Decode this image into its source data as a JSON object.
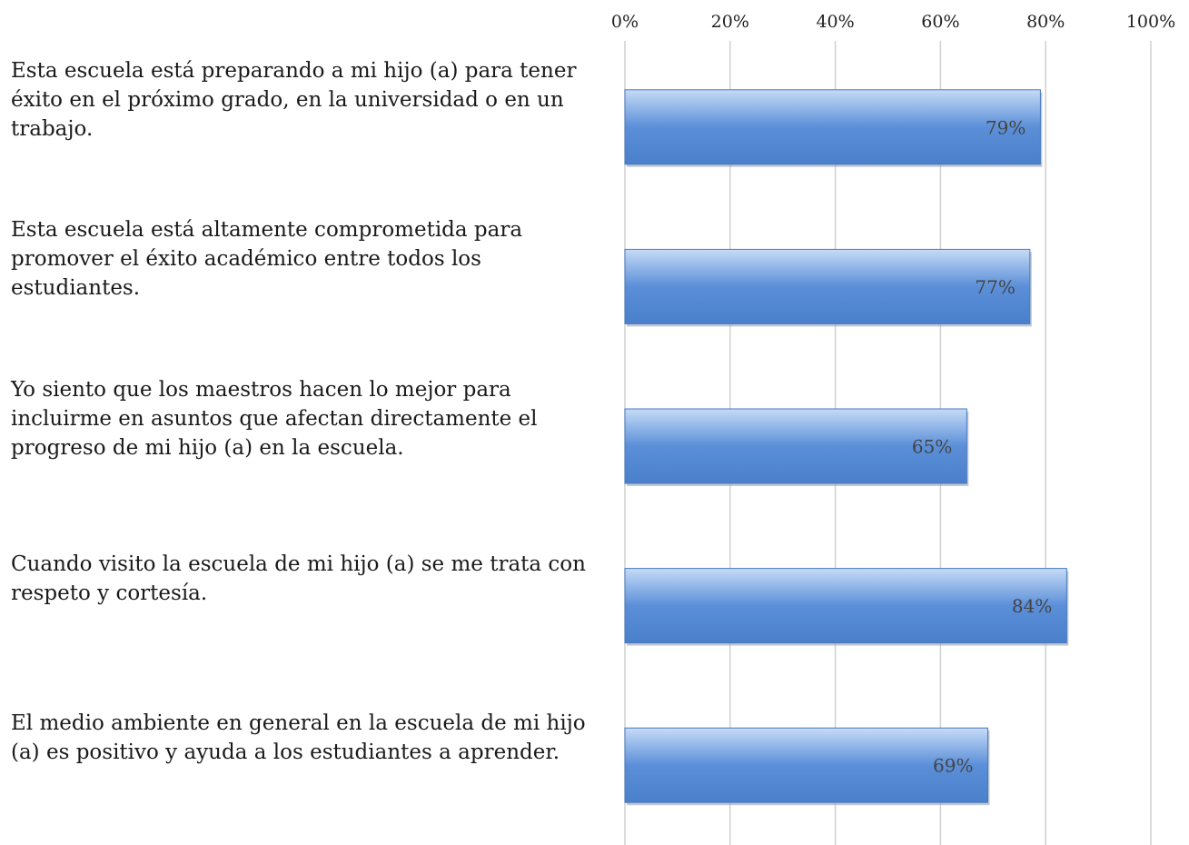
{
  "chart_data": {
    "type": "barh",
    "categories": [
      "Esta escuela está preparando a mi hijo (a) para tener éxito en el próximo grado, en la universidad o en un trabajo.",
      "Esta escuela está altamente comprometida para promover el éxito académico entre todos los estudiantes.",
      "Yo siento que los maestros hacen lo mejor para incluirme en asuntos que afectan directamente el progreso de mi hijo (a) en la escuela.",
      "Cuando visito la escuela de mi hijo (a) se me trata con respeto y cortesía.",
      "El medio ambiente en general en la escuela de mi hijo (a) es positivo y ayuda a los estudiantes a aprender."
    ],
    "values": [
      79,
      77,
      65,
      84,
      69
    ],
    "value_labels": [
      "79%",
      "77%",
      "65%",
      "84%",
      "69%"
    ],
    "color": "#5b8fd8",
    "xlim": [
      0,
      100
    ],
    "xticks": [
      {
        "value": 0,
        "label": "0%"
      },
      {
        "value": 20,
        "label": "20%"
      },
      {
        "value": 40,
        "label": "40%"
      },
      {
        "value": 60,
        "label": "60%"
      },
      {
        "value": 80,
        "label": "80%"
      },
      {
        "value": 100,
        "label": "100%"
      }
    ],
    "grid": true
  }
}
